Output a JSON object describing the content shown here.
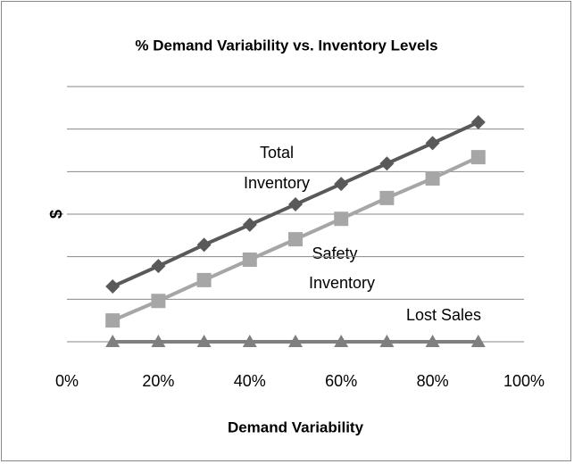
{
  "chart_data": {
    "type": "line",
    "title": "% Demand Variability vs. Inventory Levels",
    "x_label": "Demand Variability",
    "y_label": "$",
    "x": [
      10,
      20,
      30,
      40,
      50,
      60,
      70,
      80,
      90
    ],
    "series": [
      {
        "name": "Total Inventory",
        "color": "#595959",
        "marker": "diamond",
        "values": [
          1.3,
          1.78,
          2.28,
          2.75,
          3.23,
          3.71,
          4.19,
          4.67,
          5.16
        ]
      },
      {
        "name": "Safety Inventory",
        "color": "#a6a6a6",
        "marker": "square",
        "values": [
          0.5,
          0.96,
          1.45,
          1.93,
          2.41,
          2.89,
          3.38,
          3.84,
          4.34
        ]
      },
      {
        "name": "Lost Sales",
        "color": "#7f7f7f",
        "marker": "triangle",
        "values": [
          0,
          0,
          0,
          0,
          0,
          0,
          0,
          0,
          0
        ]
      }
    ],
    "annotations": [
      [
        "Total",
        "Inventory"
      ],
      [
        "Safety",
        "Inventory"
      ],
      [
        "Lost Sales"
      ]
    ],
    "xlim": [
      0,
      100
    ],
    "xticks": [
      {
        "value": 0,
        "label": "0%"
      },
      {
        "value": 20,
        "label": "20%"
      },
      {
        "value": 40,
        "label": "40%"
      },
      {
        "value": 60,
        "label": "60%"
      },
      {
        "value": 80,
        "label": "80%"
      },
      {
        "value": 100,
        "label": "100%"
      }
    ],
    "ylim": [
      0,
      6
    ],
    "yticks": [
      0,
      1,
      2,
      3,
      4,
      5,
      6
    ],
    "grid": true
  }
}
